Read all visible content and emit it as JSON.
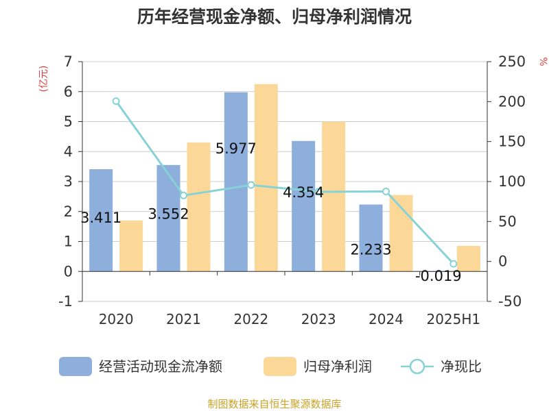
{
  "chart_data": {
    "type": "bar",
    "title": "历年经营现金净额、归母净利润情况",
    "categories": [
      "2020",
      "2021",
      "2022",
      "2023",
      "2024",
      "2025H1"
    ],
    "y_left": {
      "unit": "(亿元)",
      "ylim": [
        -1,
        7
      ],
      "ticks": [
        "-1",
        "0",
        "1",
        "2",
        "3",
        "4",
        "5",
        "6",
        "7"
      ]
    },
    "y_right": {
      "unit": "%",
      "ylim": [
        -50,
        250
      ],
      "ticks": [
        "-50",
        "0",
        "50",
        "100",
        "150",
        "200",
        "250"
      ]
    },
    "series": [
      {
        "name": "经营活动现金流净额",
        "kind": "bar",
        "axis": "left",
        "color": "#8eaedb",
        "values": [
          3.411,
          3.552,
          5.977,
          4.354,
          2.233,
          -0.019
        ],
        "labels": [
          "3.411",
          "3.552",
          "5.977",
          "4.354",
          "2.233",
          "-0.019"
        ]
      },
      {
        "name": "归母净利润",
        "kind": "bar",
        "axis": "left",
        "color": "#fcd898",
        "values": [
          1.7,
          4.3,
          6.25,
          5.0,
          2.55,
          0.85
        ]
      },
      {
        "name": "净现比",
        "kind": "line",
        "axis": "right",
        "color": "#86d2d6",
        "values": [
          200.6,
          82.6,
          95.6,
          87.1,
          87.6,
          -3.0
        ]
      }
    ],
    "grid": true,
    "legend": "bottom"
  },
  "footer": {
    "source": "制图数据来自恒生聚源数据库"
  }
}
